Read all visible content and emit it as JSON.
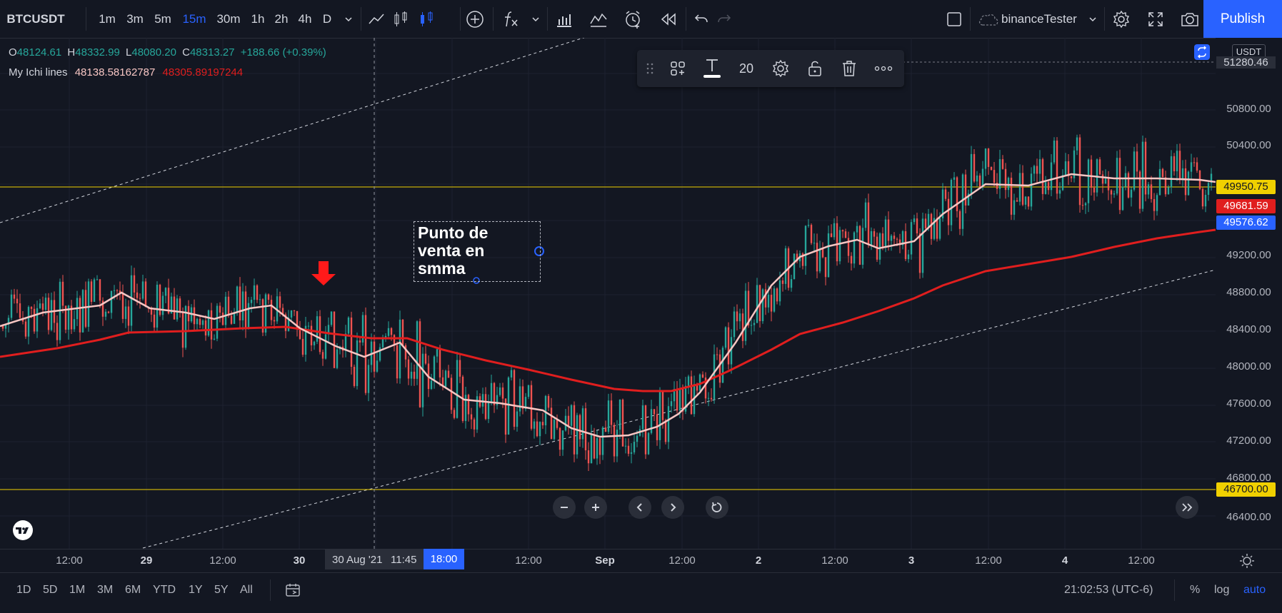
{
  "topbar": {
    "symbol": "BTCUSDT",
    "timeframes": [
      "1m",
      "3m",
      "5m",
      "15m",
      "30m",
      "1h",
      "2h",
      "4h",
      "D"
    ],
    "active_timeframe": "15m",
    "profile": "binanceTester",
    "publish_label": "Publish"
  },
  "legend": {
    "ohlc": {
      "o_label": "O",
      "o": "48124.61",
      "h_label": "H",
      "h": "48332.99",
      "l_label": "L",
      "l": "48080.20",
      "c_label": "C",
      "c": "48313.27",
      "change": "+188.66 (+0.39%)"
    },
    "indicator": {
      "name": "My Ichi lines",
      "value1": "48138.58162787",
      "value2": "48305.89197244"
    }
  },
  "floating_toolbar": {
    "font_size": "20"
  },
  "annotation_text": {
    "line1": "Punto de",
    "line2": "venta en",
    "line3": "smma"
  },
  "price_axis": {
    "currency": "USDT",
    "labels": [
      "51280.46",
      "50800.00",
      "50400.00",
      "49200.00",
      "48800.00",
      "48400.00",
      "48000.00",
      "47600.00",
      "47200.00",
      "46800.00",
      "46400.00"
    ],
    "tags": {
      "yellow_top": "49950.75",
      "red": "49681.59",
      "blue": "49576.62",
      "yellow_bottom": "46700.00"
    }
  },
  "time_axis": {
    "labels": [
      "12:00",
      "29",
      "12:00",
      "30",
      "12:00",
      "Sep",
      "12:00",
      "2",
      "12:00",
      "3",
      "12:00",
      "4",
      "12:00"
    ],
    "crosshair_date": "30 Aug '21",
    "crosshair_time": "11:45",
    "highlight": "18:00"
  },
  "bottombar": {
    "ranges": [
      "1D",
      "5D",
      "1M",
      "3M",
      "6M",
      "YTD",
      "1Y",
      "5Y",
      "All"
    ],
    "clock": "21:02:53 (UTC-6)",
    "percent_label": "%",
    "log_label": "log",
    "auto_label": "auto"
  },
  "colors": {
    "background": "#131722",
    "accent": "#2962ff",
    "yellow_line": "#f0d000",
    "red_line": "#e01e1e",
    "pink_line": "#f7c6c3",
    "candle_up": "#26a69a",
    "candle_down": "#ef5350"
  }
}
